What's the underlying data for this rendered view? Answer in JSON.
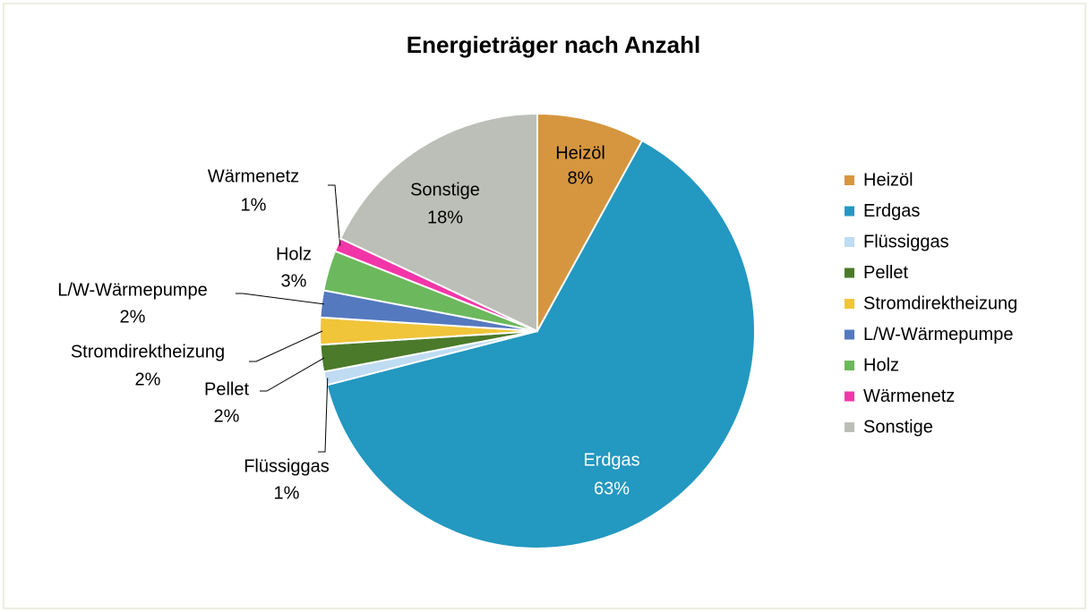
{
  "chart_data": {
    "type": "pie",
    "title": "Energieträger nach Anzahl",
    "categories": [
      "Heizöl",
      "Erdgas",
      "Flüssiggas",
      "Pellet",
      "Stromdirektheizung",
      "L/W-Wärmepumpe",
      "Holz",
      "Wärmenetz",
      "Sonstige"
    ],
    "values": [
      8,
      63,
      1,
      2,
      2,
      2,
      3,
      1,
      18
    ],
    "value_labels": [
      "8%",
      "63%",
      "1%",
      "2%",
      "2%",
      "2%",
      "3%",
      "1%",
      "18%"
    ],
    "colors": [
      "#d6963f",
      "#2398c0",
      "#bfdcf2",
      "#4a7a2a",
      "#f0c53a",
      "#5479bf",
      "#6cb85c",
      "#f236a8",
      "#bcbfb8"
    ],
    "legend": "right"
  }
}
